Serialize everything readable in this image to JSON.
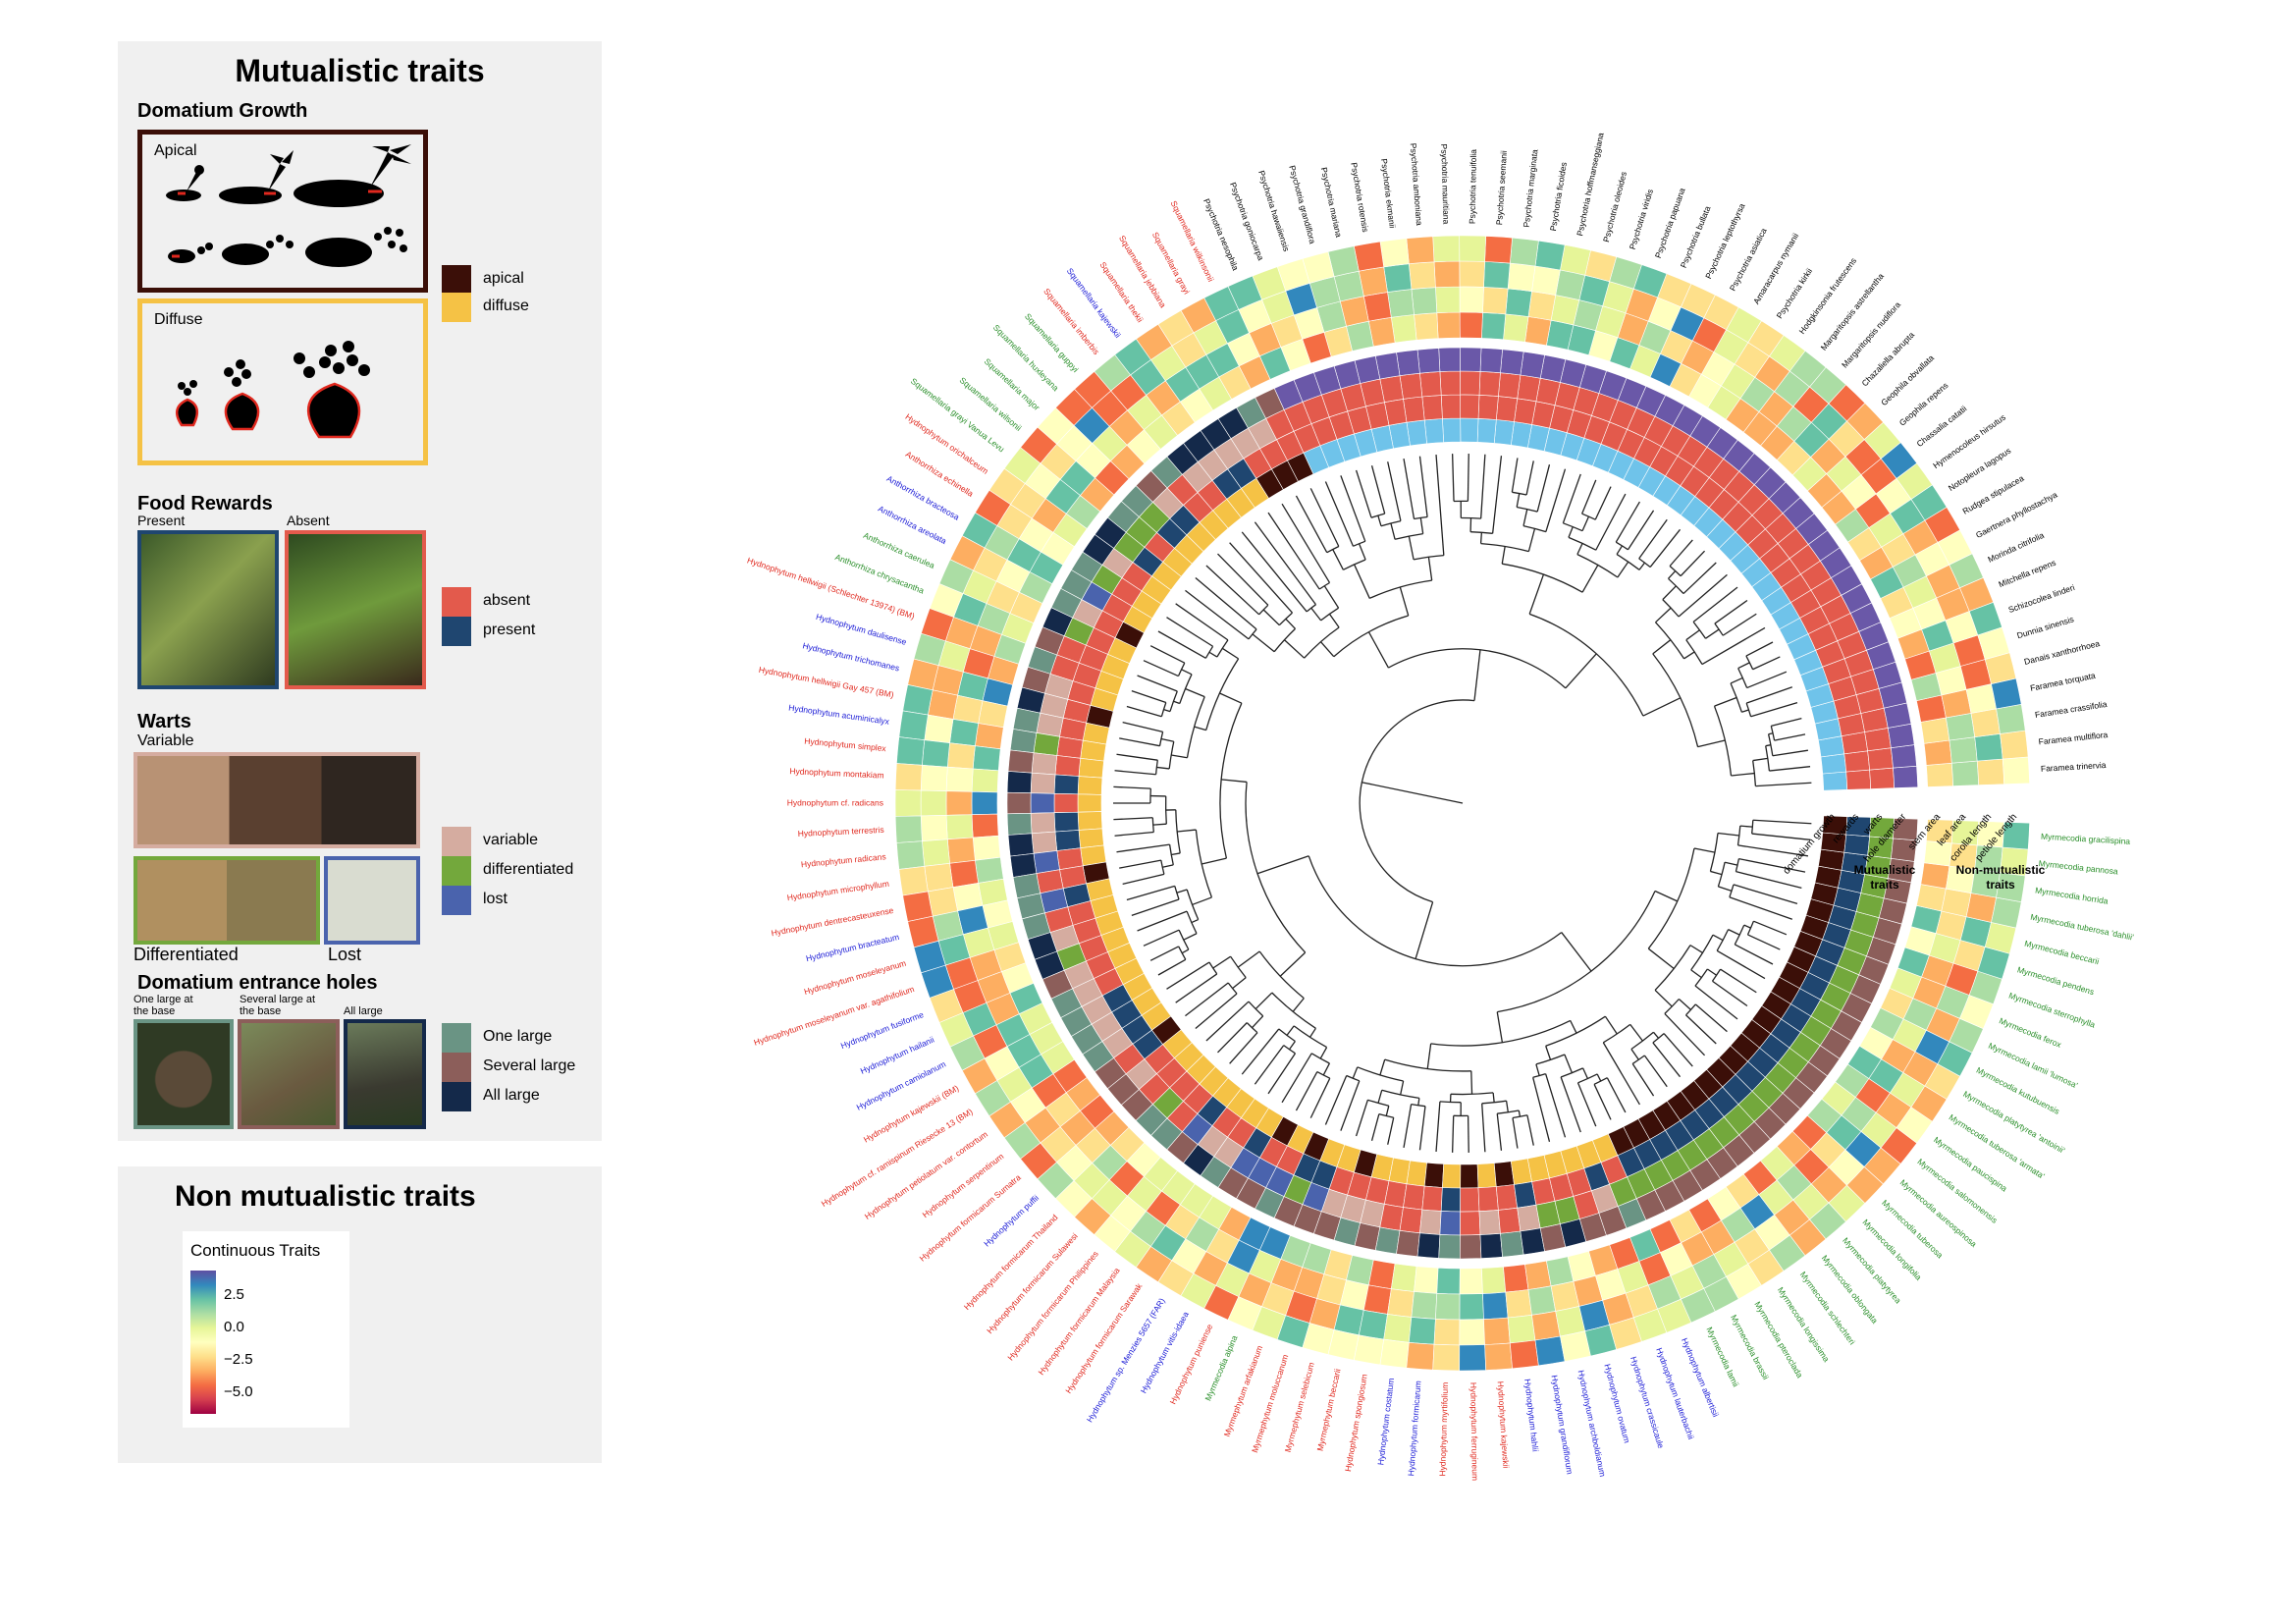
{
  "mutualistic_panel": {
    "title": "Mutualistic traits",
    "domatium_growth": {
      "heading": "Domatium Growth",
      "apical_label": "Apical",
      "diffuse_label": "Diffuse"
    },
    "food_rewards": {
      "heading": "Food Rewards",
      "present_caption": "Present",
      "absent_caption": "Absent"
    },
    "warts": {
      "heading": "Warts",
      "variable_caption": "Variable",
      "differentiated_caption": "Differentiated",
      "lost_caption": "Lost"
    },
    "entrance_holes": {
      "heading": "Domatium entrance holes",
      "one_large_caption": "One large at the base",
      "several_large_caption": "Several large at the base",
      "all_large_caption": "All large"
    }
  },
  "legends": {
    "growth": [
      {
        "label": "apical",
        "color": "#3b0f08"
      },
      {
        "label": "diffuse",
        "color": "#f5c245"
      }
    ],
    "rewards": [
      {
        "label": "absent",
        "color": "#e35a4c"
      },
      {
        "label": "present",
        "color": "#1f4670"
      }
    ],
    "warts": [
      {
        "label": "variable",
        "color": "#d5aca0"
      },
      {
        "label": "differentiated",
        "color": "#73a83c"
      },
      {
        "label": "lost",
        "color": "#4a63ad"
      }
    ],
    "holes": [
      {
        "label": "One large",
        "color": "#6a9484"
      },
      {
        "label": "Several large",
        "color": "#8c5e5a"
      },
      {
        "label": "All large",
        "color": "#14294a"
      }
    ]
  },
  "nonmutualistic_panel": {
    "title": "Non mutualistic traits",
    "colorbar_title": "Continuous Traits",
    "ticks": [
      "2.5",
      "0.0",
      "−2.5",
      "−5.0"
    ]
  },
  "ring_labels": {
    "mutualistic": [
      "domatium growth",
      "rewards",
      "warts",
      "hole diameter"
    ],
    "nonmutualistic": [
      "stem area",
      "leaf area",
      "corolla length",
      "petiole length"
    ],
    "group_mut": "Mutualistic traits",
    "group_nonmut": "Non-mutualistic traits"
  },
  "tips_left": [
    {
      "name": "Squamellaria wilkinsonii",
      "c": "#e0281e"
    },
    {
      "name": "Squamellaria grayi",
      "c": "#e0281e"
    },
    {
      "name": "Squamellaria jebbiana",
      "c": "#e0281e"
    },
    {
      "name": "Squamellaria thekii",
      "c": "#e0281e"
    },
    {
      "name": "Squamellaria kajewskii",
      "c": "#1a1ad6"
    },
    {
      "name": "Squamellaria imberbis",
      "c": "#e0281e"
    },
    {
      "name": "Squamellaria guppyi",
      "c": "#2a8f2a"
    },
    {
      "name": "Squamellaria huxleyana",
      "c": "#2a8f2a"
    },
    {
      "name": "Squamellaria major",
      "c": "#2a8f2a"
    },
    {
      "name": "Squamellaria wilsonii",
      "c": "#2a8f2a"
    },
    {
      "name": "Squamellaria grayi Vanua Levu",
      "c": "#2a8f2a"
    },
    {
      "name": "Hydnophytum orichalceum",
      "c": "#e0281e"
    },
    {
      "name": "Anthorrhiza echinella",
      "c": "#e0281e"
    },
    {
      "name": "Anthorrhiza bracteosa",
      "c": "#1a1ad6"
    },
    {
      "name": "Anthorrhiza areolata",
      "c": "#1a1ad6"
    },
    {
      "name": "Anthorrhiza caerulea",
      "c": "#2a8f2a"
    },
    {
      "name": "Anthorrhiza chrysacantha",
      "c": "#2a8f2a"
    },
    {
      "name": "Hydnophytum hellwigii (Schlechter 13974) (BM)",
      "c": "#e0281e"
    },
    {
      "name": "Hydnophytum daulisense",
      "c": "#1a1ad6"
    },
    {
      "name": "Hydnophytum trichomanes",
      "c": "#1a1ad6"
    },
    {
      "name": "Hydnophytum hellwigii Gay 457 (BM)",
      "c": "#e0281e"
    },
    {
      "name": "Hydnophytum acuminicalyx",
      "c": "#1a1ad6"
    },
    {
      "name": "Hydnophytum simplex",
      "c": "#e0281e"
    },
    {
      "name": "Hydnophytum montakiam",
      "c": "#e0281e"
    },
    {
      "name": "Hydnophytum cf. radicans",
      "c": "#e0281e"
    },
    {
      "name": "Hydnophytum terrestris",
      "c": "#e0281e"
    },
    {
      "name": "Hydnophytum radicans",
      "c": "#e0281e"
    },
    {
      "name": "Hydnophytum microphyllum",
      "c": "#e0281e"
    },
    {
      "name": "Hydnophytum dentrecasteuxense",
      "c": "#e0281e"
    },
    {
      "name": "Hydnophytum bracteatum",
      "c": "#1a1ad6"
    },
    {
      "name": "Hydnophytum moseleyanum",
      "c": "#e0281e"
    },
    {
      "name": "Hydnophytum moseleyanum var. agathifolium",
      "c": "#e0281e"
    },
    {
      "name": "Hydnophytum fusiforme",
      "c": "#1a1ad6"
    },
    {
      "name": "Hydnophytum hailanii",
      "c": "#1a1ad6"
    },
    {
      "name": "Hydnophytum camiolanum",
      "c": "#1a1ad6"
    },
    {
      "name": "Hydnophytum kajewskii (BM)",
      "c": "#e0281e"
    },
    {
      "name": "Hydnophytum cf. ramispinum Riesecke 13 (BM)",
      "c": "#e0281e"
    },
    {
      "name": "Hydnophytum petiolatum var. contortum",
      "c": "#e0281e"
    },
    {
      "name": "Hydnophytum serpentinum",
      "c": "#e0281e"
    },
    {
      "name": "Hydnophytum formicarum Sumatra",
      "c": "#e0281e"
    },
    {
      "name": "Hydnophytum puffii",
      "c": "#1a1ad6"
    },
    {
      "name": "Hydnophytum formicarum Thailand",
      "c": "#e0281e"
    },
    {
      "name": "Hydnophytum formicarum Sulawesi",
      "c": "#e0281e"
    },
    {
      "name": "Hydnophytum formicarum Philippines",
      "c": "#e0281e"
    },
    {
      "name": "Hydnophytum formicarum Malaysia",
      "c": "#e0281e"
    },
    {
      "name": "Hydnophytum formicarum Sarawak",
      "c": "#e0281e"
    },
    {
      "name": "Hydnophytum sp. Menzies 5657 (FAR)",
      "c": "#1a1ad6"
    },
    {
      "name": "Hydnophytum vitis-idaea",
      "c": "#1a1ad6"
    },
    {
      "name": "Hydnophytum puniense",
      "c": "#e0281e"
    }
  ],
  "tips_bottom": [
    {
      "name": "Myrmecodia alpina",
      "c": "#2a8f2a"
    },
    {
      "name": "Myrmephytum arfakianum",
      "c": "#e0281e"
    },
    {
      "name": "Myrmephytum moluccanum",
      "c": "#e0281e"
    },
    {
      "name": "Myrmephytum selebicum",
      "c": "#e0281e"
    },
    {
      "name": "Myrmephytum beccarii",
      "c": "#e0281e"
    },
    {
      "name": "Hydnophytum spongiosum",
      "c": "#e0281e"
    },
    {
      "name": "Hydnophytum costatum",
      "c": "#1a1ad6"
    },
    {
      "name": "Hydnophytum formicarum",
      "c": "#1a1ad6"
    },
    {
      "name": "Hydnophytum myrtifolium",
      "c": "#e0281e"
    },
    {
      "name": "Hydnophytum ferrugineum",
      "c": "#e0281e"
    },
    {
      "name": "Hydnophytum kajewskii",
      "c": "#e0281e"
    },
    {
      "name": "Hydnophytum hahlii",
      "c": "#1a1ad6"
    },
    {
      "name": "Hydnophytum grandiflorum",
      "c": "#1a1ad6"
    },
    {
      "name": "Hydnophytum archboldianum",
      "c": "#1a1ad6"
    },
    {
      "name": "Hydnophytum ovatum",
      "c": "#1a1ad6"
    },
    {
      "name": "Hydnophytum crassicaule",
      "c": "#1a1ad6"
    },
    {
      "name": "Hydnophytum lauterbachii",
      "c": "#1a1ad6"
    },
    {
      "name": "Hydnophytum albertisii",
      "c": "#1a1ad6"
    },
    {
      "name": "Myrmecodia lamii",
      "c": "#2a8f2a"
    },
    {
      "name": "Myrmecodia brassii",
      "c": "#2a8f2a"
    },
    {
      "name": "Myrmecodia pteroclada",
      "c": "#2a8f2a"
    },
    {
      "name": "Myrmecodia longissima",
      "c": "#2a8f2a"
    },
    {
      "name": "Myrmecodia schlechteri",
      "c": "#2a8f2a"
    },
    {
      "name": "Myrmecodia oblongata",
      "c": "#2a8f2a"
    },
    {
      "name": "Myrmecodia platytyrea",
      "c": "#2a8f2a"
    },
    {
      "name": "Myrmecodia longifolia",
      "c": "#2a8f2a"
    },
    {
      "name": "Myrmecodia tuberosa",
      "c": "#2a8f2a"
    },
    {
      "name": "Myrmecodia aureospinosa",
      "c": "#2a8f2a"
    },
    {
      "name": "Myrmecodia salomonensis",
      "c": "#2a8f2a"
    },
    {
      "name": "Myrmecodia paucispina",
      "c": "#2a8f2a"
    },
    {
      "name": "Myrmecodia tuberosa 'armata'",
      "c": "#2a8f2a"
    },
    {
      "name": "Myrmecodia platytyrea 'antoinii'",
      "c": "#2a8f2a"
    },
    {
      "name": "Myrmecodia kutubuensis",
      "c": "#2a8f2a"
    },
    {
      "name": "Myrmecodia lamii 'lumosa'",
      "c": "#2a8f2a"
    },
    {
      "name": "Myrmecodia ferox",
      "c": "#2a8f2a"
    },
    {
      "name": "Myrmecodia sterrophylla",
      "c": "#2a8f2a"
    },
    {
      "name": "Myrmecodia pendens",
      "c": "#2a8f2a"
    },
    {
      "name": "Myrmecodia beccarii",
      "c": "#2a8f2a"
    },
    {
      "name": "Myrmecodia tuberosa 'dahlii'",
      "c": "#2a8f2a"
    },
    {
      "name": "Myrmecodia horrida",
      "c": "#2a8f2a"
    },
    {
      "name": "Myrmecodia pannosa",
      "c": "#2a8f2a"
    },
    {
      "name": "Myrmecodia gracilispina",
      "c": "#2a8f2a"
    }
  ],
  "tips_top": [
    {
      "name": "Psychotria nesophila",
      "c": "#000000"
    },
    {
      "name": "Psychotria goniocarpa",
      "c": "#000000"
    },
    {
      "name": "Psychotria hawaiiensis",
      "c": "#000000"
    },
    {
      "name": "Psychotria grandiflora",
      "c": "#000000"
    },
    {
      "name": "Psychotria mariana",
      "c": "#000000"
    },
    {
      "name": "Psychotria rotensis",
      "c": "#000000"
    },
    {
      "name": "Psychotria ekmanii",
      "c": "#000000"
    },
    {
      "name": "Psychotria amboniana",
      "c": "#000000"
    },
    {
      "name": "Psychotria mauritiana",
      "c": "#000000"
    },
    {
      "name": "Psychotria tenuifolia",
      "c": "#000000"
    },
    {
      "name": "Psychotria seemanii",
      "c": "#000000"
    },
    {
      "name": "Psychotria marginata",
      "c": "#000000"
    },
    {
      "name": "Psychotria ficoides",
      "c": "#000000"
    },
    {
      "name": "Psychotria hoffmanseggiana",
      "c": "#000000"
    },
    {
      "name": "Psychotria oleoides",
      "c": "#000000"
    },
    {
      "name": "Psychotria viridis",
      "c": "#000000"
    },
    {
      "name": "Psychotria papuana",
      "c": "#000000"
    },
    {
      "name": "Psychotria bullata",
      "c": "#000000"
    },
    {
      "name": "Psychotria leptothyrsa",
      "c": "#000000"
    },
    {
      "name": "Psychotria asiatica",
      "c": "#000000"
    },
    {
      "name": "Amaracarpus nymanii",
      "c": "#000000"
    },
    {
      "name": "Psychotria kirkii",
      "c": "#000000"
    },
    {
      "name": "Hodgkinsonia frutescens",
      "c": "#000000"
    }
  ],
  "tips_right": [
    {
      "name": "Margaritopsis astrellantha",
      "c": "#000000"
    },
    {
      "name": "Margaritopsis nudiflora",
      "c": "#000000"
    },
    {
      "name": "Chazaliella abrupta",
      "c": "#000000"
    },
    {
      "name": "Geophila obvallata",
      "c": "#000000"
    },
    {
      "name": "Geophila repens",
      "c": "#000000"
    },
    {
      "name": "Chassalia catatii",
      "c": "#000000"
    },
    {
      "name": "Hymenocoleus hirsutus",
      "c": "#000000"
    },
    {
      "name": "Notopleura lagopus",
      "c": "#000000"
    },
    {
      "name": "Rudgea stipulacea",
      "c": "#000000"
    },
    {
      "name": "Gaertnera phyllostachya",
      "c": "#000000"
    },
    {
      "name": "Morinda citrifolia",
      "c": "#000000"
    },
    {
      "name": "Mitchella repens",
      "c": "#000000"
    },
    {
      "name": "Schizocolea linderi",
      "c": "#000000"
    },
    {
      "name": "Dunnia sinensis",
      "c": "#000000"
    },
    {
      "name": "Danais xanthorrhoea",
      "c": "#000000"
    },
    {
      "name": "Faramea torquata",
      "c": "#000000"
    },
    {
      "name": "Faramea crassifolia",
      "c": "#000000"
    },
    {
      "name": "Faramea multiflora",
      "c": "#000000"
    },
    {
      "name": "Faramea trinervia",
      "c": "#000000"
    }
  ]
}
